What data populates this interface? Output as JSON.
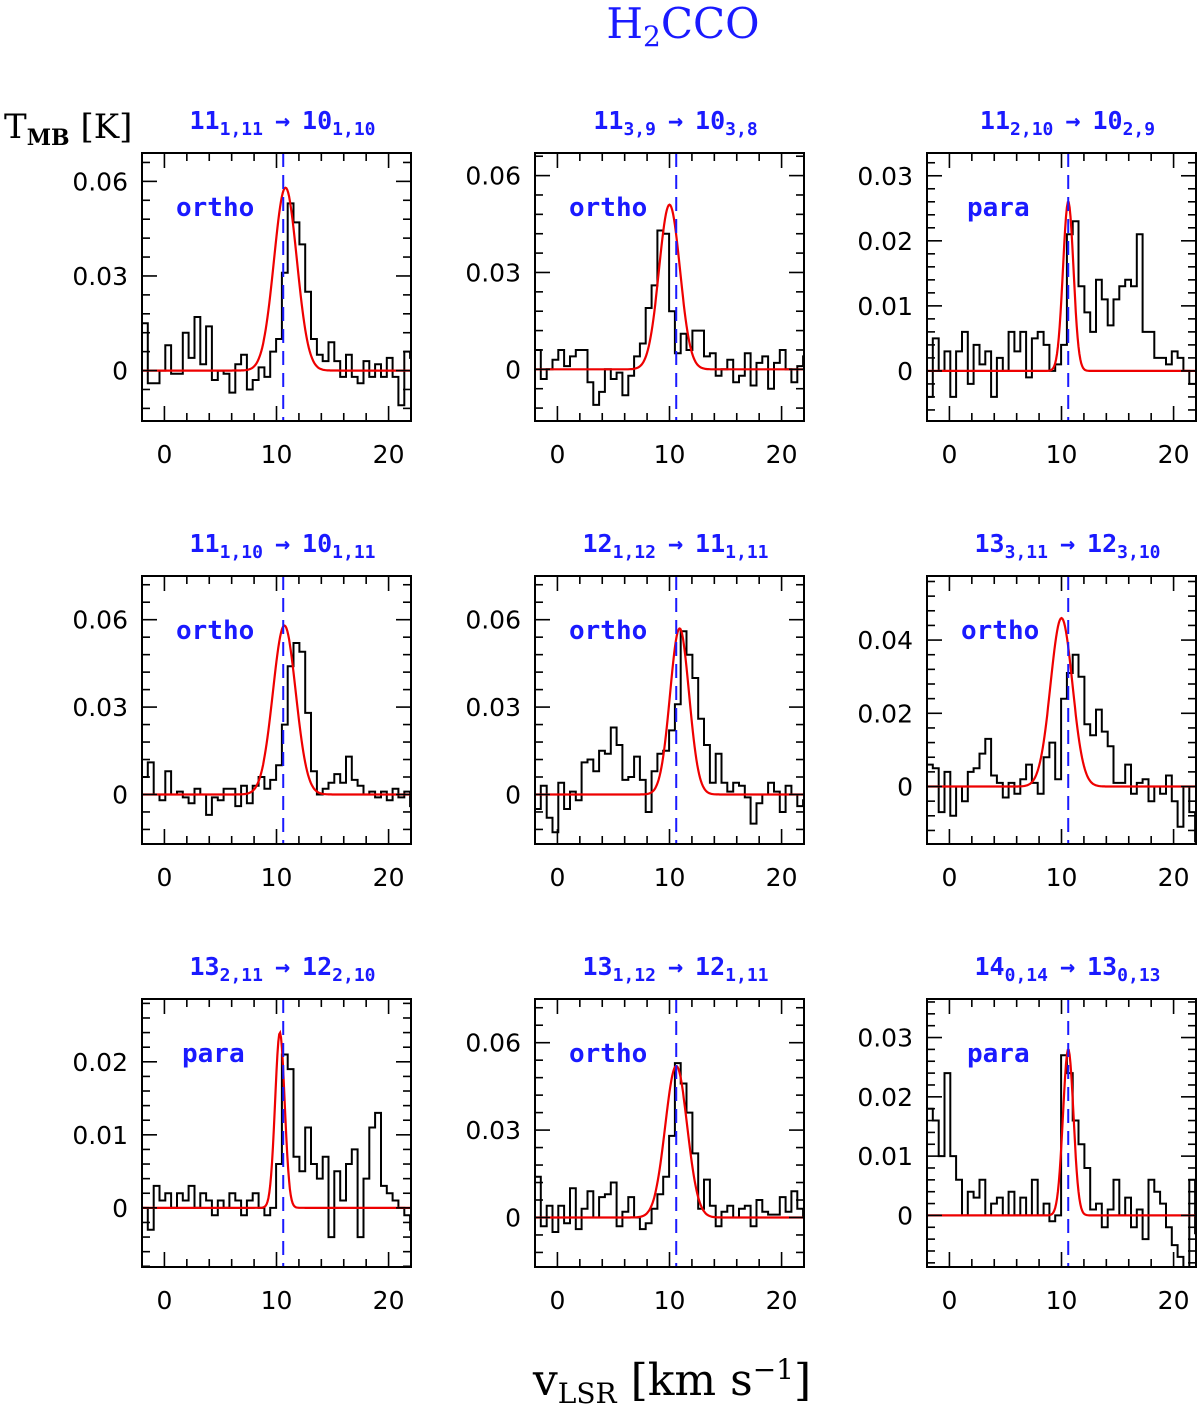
{
  "title": {
    "main": "H",
    "sub": "2",
    "rest": "CCO"
  },
  "ylabel": {
    "main": "T",
    "sub": "MB",
    "rest": " [K]"
  },
  "xlabel": {
    "main": "v",
    "sub": "LSR",
    "rest": " [km s",
    "sup": "−1",
    "end": "]"
  },
  "arrow": "→",
  "chart_data": [
    {
      "type": "line",
      "transition": {
        "up": "11",
        "up_sub": "1,11",
        "low": "10",
        "low_sub": "1,10"
      },
      "species": "ortho",
      "xlim": [
        -2,
        22
      ],
      "ylim": [
        -0.016,
        0.069
      ],
      "xticks": [
        0,
        10,
        20
      ],
      "yticks": [
        0,
        0.03,
        0.06
      ],
      "ytick_labels": [
        "0",
        "0.03",
        "0.06"
      ],
      "vlsr": 10.6,
      "fit": {
        "peak": 0.058,
        "center": 10.8,
        "fwhm": 2.4
      },
      "observed": {
        "x0": -2,
        "dx": 0.52,
        "y": [
          0.015,
          -0.004,
          -0.004,
          0.0,
          0.008,
          -0.001,
          -0.001,
          0.012,
          0.004,
          0.017,
          0.002,
          0.014,
          -0.003,
          0.0,
          -0.001,
          -0.007,
          0.002,
          0.005,
          -0.006,
          -0.003,
          0.001,
          -0.002,
          0.006,
          0.01,
          0.031,
          0.053,
          0.047,
          0.04,
          0.025,
          0.01,
          0.005,
          0.003,
          0.009,
          0.003,
          -0.002,
          0.005,
          -0.002,
          -0.004,
          0.003,
          -0.002,
          0.002,
          -0.002,
          0.004,
          -0.002,
          -0.011,
          0.006,
          0.004,
          0.0
        ]
      }
    },
    {
      "type": "line",
      "transition": {
        "up": "11",
        "up_sub": "3,9",
        "low": "10",
        "low_sub": "3,8"
      },
      "species": "ortho",
      "xlim": [
        -2,
        22
      ],
      "ylim": [
        -0.016,
        0.067
      ],
      "xticks": [
        0,
        10,
        20
      ],
      "yticks": [
        0,
        0.03,
        0.06
      ],
      "ytick_labels": [
        "0",
        "0.03",
        "0.06"
      ],
      "vlsr": 10.6,
      "fit": {
        "peak": 0.051,
        "center": 10.0,
        "fwhm": 2.2
      },
      "observed": {
        "x0": -2,
        "dx": 0.52,
        "y": [
          0.006,
          -0.003,
          0.0,
          0.003,
          0.006,
          0.001,
          0.004,
          0.006,
          0.006,
          -0.004,
          -0.011,
          -0.007,
          0.0,
          -0.003,
          -0.001,
          -0.008,
          -0.002,
          0.004,
          0.008,
          0.019,
          0.026,
          0.043,
          0.042,
          0.018,
          0.005,
          0.011,
          0.006,
          0.012,
          0.012,
          0.004,
          0.005,
          -0.002,
          0.0,
          0.003,
          -0.004,
          -0.002,
          0.005,
          -0.005,
          0.002,
          0.004,
          -0.006,
          0.002,
          0.006,
          0.0,
          -0.004,
          0.001,
          0.004,
          -0.003
        ]
      }
    },
    {
      "type": "line",
      "transition": {
        "up": "11",
        "up_sub": "2,10",
        "low": "10",
        "low_sub": "2,9"
      },
      "species": "para",
      "xlim": [
        -2,
        22
      ],
      "ylim": [
        -0.0077,
        0.0335
      ],
      "xticks": [
        0,
        10,
        20
      ],
      "yticks": [
        0,
        0.01,
        0.02,
        0.03
      ],
      "ytick_labels": [
        "0",
        "0.01",
        "0.02",
        "0.03"
      ],
      "vlsr": 10.6,
      "fit": {
        "peak": 0.026,
        "center": 10.6,
        "fwhm": 1.1
      },
      "observed": {
        "x0": -2,
        "dx": 0.52,
        "y": [
          -0.004,
          0.005,
          0.0,
          0.003,
          -0.004,
          0.003,
          0.006,
          -0.002,
          0.004,
          0.001,
          0.003,
          -0.004,
          0.002,
          0.0,
          0.006,
          0.003,
          0.006,
          -0.001,
          0.005,
          0.006,
          0.004,
          0.0,
          0.001,
          0.004,
          0.021,
          0.023,
          0.013,
          0.009,
          0.006,
          0.014,
          0.011,
          0.007,
          0.011,
          0.013,
          0.014,
          0.013,
          0.021,
          0.006,
          0.006,
          0.002,
          0.002,
          0.001,
          0.003,
          0.002,
          0.0,
          -0.002,
          -0.002,
          0.006
        ]
      }
    },
    {
      "type": "line",
      "transition": {
        "up": "11",
        "up_sub": "1,10",
        "low": "10",
        "low_sub": "1,11"
      },
      "species": "ortho",
      "xlim": [
        -2,
        22
      ],
      "ylim": [
        -0.017,
        0.075
      ],
      "xticks": [
        0,
        10,
        20
      ],
      "yticks": [
        0,
        0.03,
        0.06
      ],
      "ytick_labels": [
        "0",
        "0.03",
        "0.06"
      ],
      "vlsr": 10.6,
      "fit": {
        "peak": 0.058,
        "center": 10.7,
        "fwhm": 2.4
      },
      "observed": {
        "x0": -2,
        "dx": 0.52,
        "y": [
          0.006,
          0.011,
          0.0,
          -0.002,
          0.008,
          0.0,
          0.001,
          -0.001,
          -0.003,
          0.002,
          0.0,
          -0.007,
          -0.001,
          -0.002,
          0.002,
          0.002,
          -0.004,
          0.003,
          -0.003,
          0.003,
          0.006,
          0.002,
          0.005,
          0.01,
          0.024,
          0.044,
          0.052,
          0.049,
          0.028,
          0.008,
          0.0,
          0.002,
          0.004,
          0.007,
          0.004,
          0.013,
          0.005,
          0.003,
          0.0,
          0.001,
          -0.001,
          0.001,
          -0.002,
          0.002,
          -0.001,
          0.001,
          -0.004,
          -0.006
        ]
      }
    },
    {
      "type": "line",
      "transition": {
        "up": "12",
        "up_sub": "1,12",
        "low": "11",
        "low_sub": "1,11"
      },
      "species": "ortho",
      "xlim": [
        -2,
        22
      ],
      "ylim": [
        -0.017,
        0.075
      ],
      "xticks": [
        0,
        10,
        20
      ],
      "yticks": [
        0,
        0.03,
        0.06
      ],
      "ytick_labels": [
        "0",
        "0.03",
        "0.06"
      ],
      "vlsr": 10.6,
      "fit": {
        "peak": 0.057,
        "center": 10.9,
        "fwhm": 2.0
      },
      "observed": {
        "x0": -2,
        "dx": 0.52,
        "y": [
          -0.005,
          0.003,
          -0.008,
          -0.013,
          0.004,
          -0.005,
          0.001,
          -0.002,
          0.011,
          0.012,
          0.008,
          0.015,
          0.014,
          0.023,
          0.017,
          0.005,
          0.006,
          0.013,
          0.005,
          -0.006,
          0.008,
          0.014,
          0.015,
          0.022,
          0.031,
          0.056,
          0.048,
          0.04,
          0.026,
          0.017,
          0.004,
          0.014,
          0.004,
          0.001,
          0.004,
          0.003,
          -0.001,
          -0.01,
          -0.003,
          0.0,
          0.004,
          0.001,
          -0.006,
          0.003,
          0.0,
          -0.004,
          -0.002,
          0.003
        ]
      }
    },
    {
      "type": "line",
      "transition": {
        "up": "13",
        "up_sub": "3,11",
        "low": "12",
        "low_sub": "3,10"
      },
      "species": "ortho",
      "xlim": [
        -2,
        22
      ],
      "ylim": [
        -0.0157,
        0.0575
      ],
      "xticks": [
        0,
        10,
        20
      ],
      "yticks": [
        0,
        0.02,
        0.04
      ],
      "ytick_labels": [
        "0",
        "0.02",
        "0.04"
      ],
      "vlsr": 10.6,
      "fit": {
        "peak": 0.046,
        "center": 10.0,
        "fwhm": 2.3
      },
      "observed": {
        "x0": -2,
        "dx": 0.52,
        "y": [
          0.006,
          0.005,
          -0.007,
          0.004,
          -0.008,
          0.0,
          -0.004,
          0.004,
          0.005,
          0.009,
          0.013,
          0.003,
          0.001,
          -0.003,
          0.001,
          -0.002,
          0.002,
          0.006,
          0.001,
          -0.002,
          0.008,
          0.012,
          0.002,
          0.024,
          0.031,
          0.036,
          0.03,
          0.017,
          0.014,
          0.021,
          0.015,
          0.011,
          0.001,
          0.001,
          0.006,
          -0.002,
          0.001,
          0.002,
          -0.004,
          0.0,
          -0.002,
          0.003,
          -0.004,
          -0.011,
          0.0,
          -0.007,
          -0.015,
          0.0
        ]
      }
    },
    {
      "type": "line",
      "transition": {
        "up": "13",
        "up_sub": "2,11",
        "low": "12",
        "low_sub": "2,10"
      },
      "species": "para",
      "xlim": [
        -2,
        22
      ],
      "ylim": [
        -0.0081,
        0.0286
      ],
      "xticks": [
        0,
        10,
        20
      ],
      "yticks": [
        0,
        0.01,
        0.02
      ],
      "ytick_labels": [
        "0",
        "0.01",
        "0.02"
      ],
      "vlsr": 10.6,
      "fit": {
        "peak": 0.024,
        "center": 10.3,
        "fwhm": 1.0
      },
      "observed": {
        "x0": -2,
        "dx": 0.52,
        "y": [
          0.0,
          -0.003,
          0.003,
          0.001,
          0.002,
          0.0,
          0.002,
          0.001,
          0.003,
          0.0,
          0.002,
          0.001,
          -0.001,
          0.001,
          0.0,
          0.002,
          0.001,
          -0.001,
          0.001,
          0.002,
          0.0,
          -0.001,
          0.0,
          0.006,
          0.021,
          0.019,
          0.007,
          0.005,
          0.011,
          0.006,
          0.004,
          0.007,
          -0.004,
          0.005,
          0.001,
          0.006,
          0.008,
          -0.004,
          0.004,
          0.011,
          0.013,
          0.003,
          0.002,
          0.001,
          0.0,
          -0.001,
          -0.003,
          -0.006
        ]
      }
    },
    {
      "type": "line",
      "transition": {
        "up": "13",
        "up_sub": "1,12",
        "low": "12",
        "low_sub": "1,11"
      },
      "species": "ortho",
      "xlim": [
        -2,
        22
      ],
      "ylim": [
        -0.017,
        0.075
      ],
      "xticks": [
        0,
        10,
        20
      ],
      "yticks": [
        0,
        0.03,
        0.06
      ],
      "ytick_labels": [
        "0",
        "0.03",
        "0.06"
      ],
      "vlsr": 10.6,
      "fit": {
        "peak": 0.052,
        "center": 10.6,
        "fwhm": 2.3
      },
      "observed": {
        "x0": -2,
        "dx": 0.52,
        "y": [
          0.014,
          -0.003,
          0.004,
          -0.005,
          0.004,
          -0.002,
          0.01,
          -0.004,
          0.003,
          0.009,
          0.0,
          0.007,
          0.008,
          0.012,
          -0.003,
          0.002,
          0.007,
          0.0,
          -0.004,
          -0.002,
          0.003,
          0.008,
          0.014,
          0.028,
          0.053,
          0.046,
          0.036,
          0.022,
          0.003,
          0.013,
          0.004,
          -0.003,
          0.002,
          0.004,
          0.0,
          0.003,
          0.004,
          -0.003,
          0.006,
          0.002,
          0.001,
          0.001,
          0.007,
          0.002,
          0.009,
          0.003,
          0.0,
          0.001
        ]
      }
    },
    {
      "type": "line",
      "transition": {
        "up": "14",
        "up_sub": "0,14",
        "low": "13",
        "low_sub": "0,13"
      },
      "species": "para",
      "xlim": [
        -2,
        22
      ],
      "ylim": [
        -0.0087,
        0.0365
      ],
      "xticks": [
        0,
        10,
        20
      ],
      "yticks": [
        0,
        0.01,
        0.02,
        0.03
      ],
      "ytick_labels": [
        "0",
        "0.01",
        "0.02",
        "0.03"
      ],
      "vlsr": 10.6,
      "fit": {
        "peak": 0.028,
        "center": 10.6,
        "fwhm": 1.1
      },
      "observed": {
        "x0": -2,
        "dx": 0.52,
        "y": [
          0.018,
          0.016,
          0.01,
          0.024,
          0.01,
          0.006,
          0.0,
          0.004,
          0.003,
          0.006,
          0.0,
          0.002,
          0.003,
          0.0,
          0.004,
          0.0,
          0.003,
          0.0,
          0.006,
          0.0,
          0.002,
          -0.001,
          0.0,
          0.027,
          0.024,
          0.016,
          0.012,
          0.008,
          0.001,
          0.002,
          -0.002,
          0.001,
          0.006,
          0.0,
          0.003,
          -0.002,
          0.001,
          -0.004,
          0.006,
          0.004,
          0.002,
          -0.002,
          -0.005,
          -0.007,
          -0.011,
          0.006,
          -0.003,
          0.004
        ]
      }
    }
  ]
}
